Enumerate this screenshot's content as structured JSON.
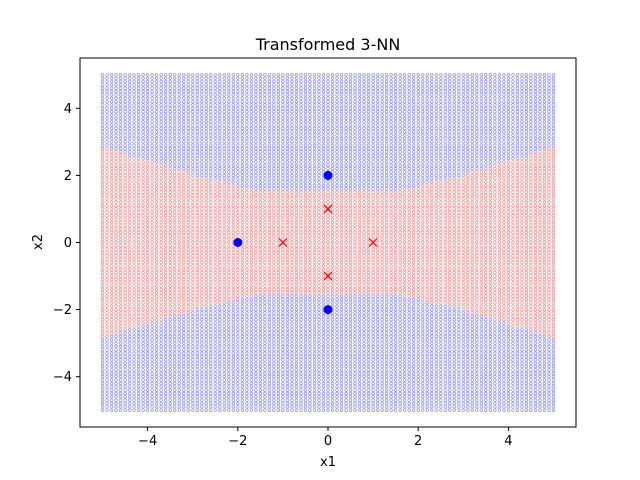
{
  "chart_data": {
    "type": "scatter",
    "title": "Transformed 3-NN",
    "xlabel": "x1",
    "ylabel": "x2",
    "xlim": [
      -5.5,
      5.5
    ],
    "ylim": [
      -5.5,
      5.5
    ],
    "xticks": [
      -4,
      -2,
      0,
      2,
      4
    ],
    "yticks": [
      -4,
      -2,
      0,
      2,
      4
    ],
    "xtick_labels": [
      "−4",
      "−2",
      "0",
      "2",
      "4"
    ],
    "ytick_labels": [
      "−4",
      "−2",
      "0",
      "2",
      "4"
    ],
    "grid": false,
    "decision_grid": {
      "x_range": [
        -5,
        5
      ],
      "y_range": [
        -5,
        5
      ],
      "step": 0.1,
      "marker": "o",
      "region_rule": "class of majority of 3 nearest neighbors in transformed space",
      "negative_region_color": "#ff8080",
      "positive_region_color": "#8080ff"
    },
    "series": [
      {
        "marker": "x",
        "color": "#ff0000",
        "points": [
          [
            0,
            1
          ],
          [
            -1,
            0
          ],
          [
            1,
            0
          ],
          [
            0,
            -1
          ]
        ]
      },
      {
        "marker": "o",
        "color": "#0000ff",
        "points": [
          [
            0,
            2
          ],
          [
            -2,
            0
          ],
          [
            0,
            -2
          ]
        ]
      }
    ]
  }
}
